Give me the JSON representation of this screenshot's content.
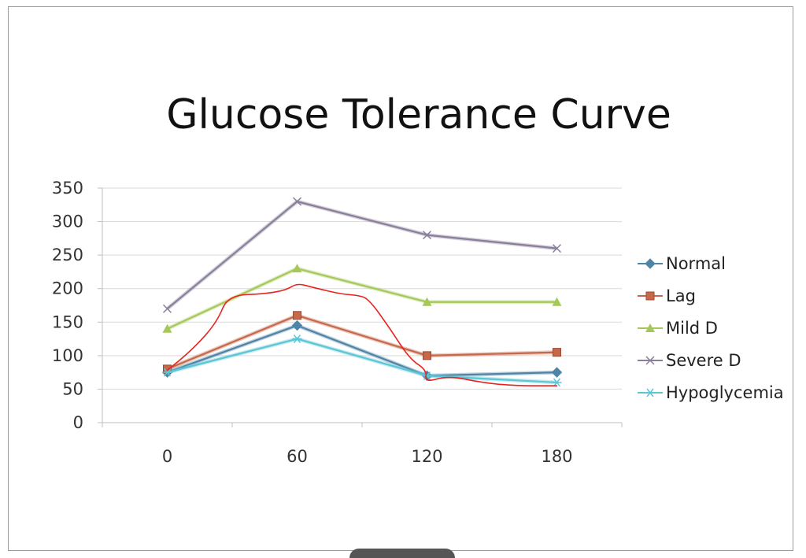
{
  "colors": {
    "Normal": "#4f84a6",
    "Lag": "#c6684a",
    "Mild D": "#a6c85a",
    "Severe D": "#8a7f9a",
    "Hypoglycemia": "#5cc5d6",
    "annotation": "#e8231f"
  },
  "chart_data": {
    "type": "line",
    "title": "Glucose Tolerance Curve",
    "categories": [
      "0",
      "60",
      "120",
      "180"
    ],
    "ylim": [
      0,
      350
    ],
    "yticks": [
      "0",
      "50",
      "100",
      "150",
      "200",
      "250",
      "300",
      "350"
    ],
    "grid": true,
    "legend_position": "right",
    "series": [
      {
        "name": "Normal",
        "marker": "diamond",
        "values": [
          75,
          145,
          70,
          75
        ]
      },
      {
        "name": "Lag",
        "marker": "square",
        "values": [
          80,
          160,
          100,
          105
        ]
      },
      {
        "name": "Mild D",
        "marker": "triangle",
        "values": [
          140,
          230,
          180,
          180
        ]
      },
      {
        "name": "Severe D",
        "marker": "x",
        "values": [
          170,
          330,
          280,
          260
        ]
      },
      {
        "name": "Hypoglycemia",
        "marker": "star",
        "values": [
          75,
          125,
          70,
          60
        ]
      }
    ],
    "annotation": {
      "type": "freehand",
      "points": [
        [
          0,
          78
        ],
        [
          12,
          110
        ],
        [
          23,
          150
        ],
        [
          28,
          190
        ],
        [
          45,
          192
        ],
        [
          55,
          198
        ],
        [
          60,
          208
        ],
        [
          67,
          202
        ],
        [
          80,
          192
        ],
        [
          88,
          190
        ],
        [
          93,
          185
        ],
        [
          103,
          140
        ],
        [
          112,
          95
        ],
        [
          120,
          78
        ],
        [
          119,
          60
        ],
        [
          130,
          70
        ],
        [
          145,
          60
        ],
        [
          160,
          55
        ],
        [
          180,
          55
        ]
      ]
    }
  }
}
